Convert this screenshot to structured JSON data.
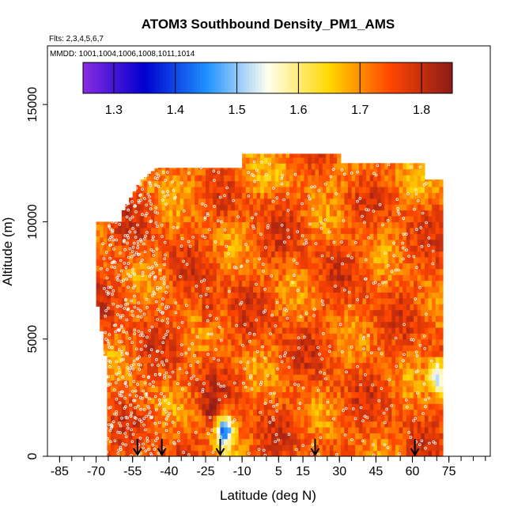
{
  "chart_data": {
    "type": "heatmap",
    "title": "ATOM3 Southbound Density_PM1_AMS",
    "subtitle": "Flts: 2,3,4,5,6,7",
    "annotation": "MMDD: 1001,1004,1006,1008,1011,1014",
    "xlabel": "Latitude (deg N)",
    "ylabel": "Altitude (m)",
    "xlim": [
      -90,
      92
    ],
    "ylim": [
      0,
      17500
    ],
    "x_tick_labels": [
      "-85",
      "-70",
      "-55",
      "-40",
      "-25",
      "-10",
      "5",
      "15",
      "30",
      "45",
      "60",
      "75"
    ],
    "x_tick_values": [
      -85,
      -70,
      -55,
      -40,
      -25,
      -10,
      5,
      15,
      30,
      45,
      60,
      75
    ],
    "y_tick_labels": [
      "0",
      "5000",
      "10000",
      "15000"
    ],
    "y_tick_values": [
      0,
      5000,
      10000,
      15000
    ],
    "colorbar": {
      "range": [
        1.25,
        1.85
      ],
      "tick_labels": [
        "1.3",
        "1.4",
        "1.5",
        "1.6",
        "1.7",
        "1.8"
      ],
      "tick_values": [
        1.3,
        1.4,
        1.5,
        1.6,
        1.7,
        1.8
      ],
      "colors": [
        "#8a2be2",
        "#0000cd",
        "#1e90ff",
        "#fffff0",
        "#ffd700",
        "#ff4500",
        "#8b1a1a"
      ]
    },
    "data_extent": {
      "lat_range": [
        -70,
        72
      ],
      "alt_range": [
        0,
        12900
      ]
    },
    "typical_value": 1.74,
    "features": [
      {
        "lat": -18,
        "alt": 1000,
        "value": 1.45,
        "label": "low-density minimum near surface"
      },
      {
        "lat": 70,
        "alt": 3300,
        "value": 1.5,
        "label": "low-density minimum"
      },
      {
        "lat": -25,
        "alt": 6000,
        "value": 1.81,
        "label": "high-density maximum"
      },
      {
        "lat": -23,
        "alt": 1800,
        "value": 1.81,
        "label": "high-density maximum"
      }
    ],
    "sounding_arrow_lats": [
      -53,
      -43,
      -19,
      20,
      61
    ]
  }
}
